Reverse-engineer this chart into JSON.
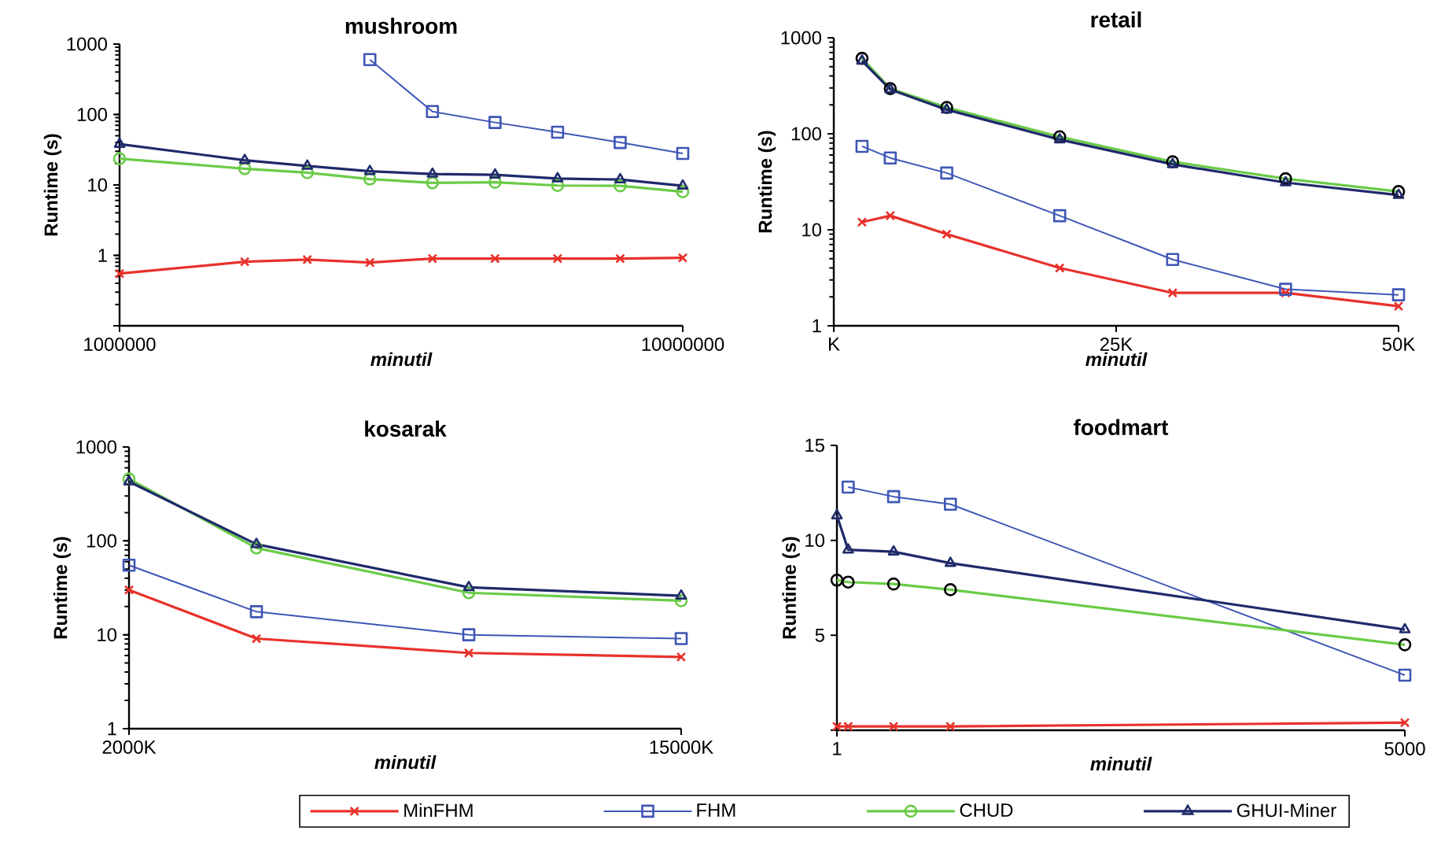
{
  "chart_data": [
    {
      "type": "line",
      "title": "mushroom",
      "xlabel": "minutil",
      "ylabel": "Runtime (s)",
      "log": "y",
      "x": [
        1000000,
        3000000,
        4000000,
        5000000,
        6000000,
        7000000,
        8000000,
        9000000,
        10000000
      ],
      "xlim": [
        1000000,
        10000000
      ],
      "xticks": [
        1000000,
        10000000
      ],
      "ylim": [
        0.1,
        1000
      ],
      "yticks": [
        {
          "value": 0.1,
          "label": null
        },
        1,
        10,
        100,
        1000
      ],
      "series": [
        {
          "color": "#e8312b",
          "marker": "cross",
          "values": [
            0.55,
            0.81,
            0.87,
            0.79,
            0.9,
            0.9,
            0.9,
            0.9,
            0.92
          ]
        },
        {
          "color": "#3f56b5",
          "marker": "square",
          "x": [
            5000000,
            6000000,
            7000000,
            8000000,
            9000000,
            10000000
          ],
          "values": [
            600,
            110,
            77,
            56,
            40,
            28
          ]
        },
        {
          "color": "#6acb47",
          "marker": "circle",
          "values": [
            23.6,
            17,
            14.9,
            12.1,
            10.7,
            10.9,
            9.8,
            9.7,
            8
          ]
        },
        {
          "color": "#1f2a6b",
          "marker": "triangle",
          "values": [
            38,
            22.4,
            18.6,
            15.6,
            14.3,
            13.9,
            12.3,
            11.9,
            9.7
          ]
        }
      ]
    },
    {
      "type": "line",
      "title": "retail",
      "xlabel": "minutil",
      "ylabel": "Runtime (s)",
      "log": "y",
      "x": [
        2500,
        5000,
        10000,
        20000,
        30000,
        40000,
        50000
      ],
      "xlim": [
        0,
        50000
      ],
      "xticks": [
        {
          "value": 0,
          "label": "K"
        },
        {
          "value": 25000,
          "label": "25K"
        },
        {
          "value": 50000,
          "label": "50K"
        }
      ],
      "ylim": [
        1,
        1000
      ],
      "yticks": [
        1,
        10,
        100,
        1000
      ],
      "series": [
        {
          "color": "#e8312b",
          "marker": "cross",
          "values": [
            12,
            14,
            9,
            4,
            2.2,
            2.2,
            1.6
          ]
        },
        {
          "color": "#3f56b5",
          "marker": "square",
          "values": [
            74,
            56,
            39,
            14,
            4.9,
            2.4,
            2.1
          ]
        },
        {
          "color": "#6acb47",
          "marker": "circle",
          "colors": [
            "#000000",
            "#000000",
            "#000000",
            "#000000",
            "#000000",
            "#000000",
            "#000000"
          ],
          "values": [
            610,
            295,
            188,
            93,
            51,
            34,
            25
          ]
        },
        {
          "color": "#1f2a6b",
          "marker": "triangle",
          "values": [
            573,
            289,
            178,
            87,
            48,
            31,
            23
          ]
        }
      ]
    },
    {
      "type": "line",
      "title": "kosarak",
      "xlabel": "minutil",
      "ylabel": "Runtime (s)",
      "log": "y",
      "x": [
        2000000,
        5000000,
        10000000,
        15000000
      ],
      "xlim": [
        2000000,
        15000000
      ],
      "xticks": [
        {
          "value": 2000000,
          "label": "2000K"
        },
        {
          "value": 15000000,
          "label": "15000K"
        }
      ],
      "ylim": [
        1,
        1000
      ],
      "yticks": [
        1,
        10,
        100,
        1000
      ],
      "series": [
        {
          "color": "#e8312b",
          "marker": "cross",
          "values": [
            30,
            9.1,
            6.4,
            5.8
          ]
        },
        {
          "color": "#3f56b5",
          "marker": "square",
          "values": [
            55,
            17.6,
            10,
            9.1
          ]
        },
        {
          "color": "#6acb47",
          "marker": "circle",
          "values": [
            456,
            84,
            28,
            23
          ]
        },
        {
          "color": "#1f2a6b",
          "marker": "triangle",
          "values": [
            428,
            92,
            32,
            26
          ]
        }
      ]
    },
    {
      "type": "line",
      "title": "foodmart",
      "xlabel": "minutil",
      "ylabel": "Runtime (s)",
      "legend": "bottom",
      "x": [
        1,
        100,
        500,
        1000,
        5000
      ],
      "xlim": [
        1,
        5000
      ],
      "xticks": [
        1,
        5000
      ],
      "ylim": [
        0,
        15
      ],
      "yticks": [
        {
          "value": 0,
          "label": null
        },
        5,
        10,
        15
      ],
      "series": [
        {
          "name": "MinFHM",
          "color": "#e8312b",
          "marker": "cross",
          "values": [
            0.2,
            0.2,
            0.2,
            0.2,
            0.4
          ]
        },
        {
          "name": "FHM",
          "color": "#3f56b5",
          "marker": "square",
          "x": [
            100,
            500,
            1000,
            5000
          ],
          "values": [
            12.8,
            12.3,
            11.9,
            2.9
          ]
        },
        {
          "name": "CHUD",
          "color": "#6acb47",
          "marker": "circle",
          "colors": [
            "#000000",
            "#000000",
            "#000000",
            "#000000",
            "#000000"
          ],
          "values": [
            7.9,
            7.8,
            7.7,
            7.4,
            4.5
          ]
        },
        {
          "name": "GHUI-Miner",
          "color": "#1f2a6b",
          "marker": "triangle",
          "values": [
            11.3,
            9.5,
            9.4,
            8.8,
            5.3
          ]
        }
      ]
    }
  ]
}
